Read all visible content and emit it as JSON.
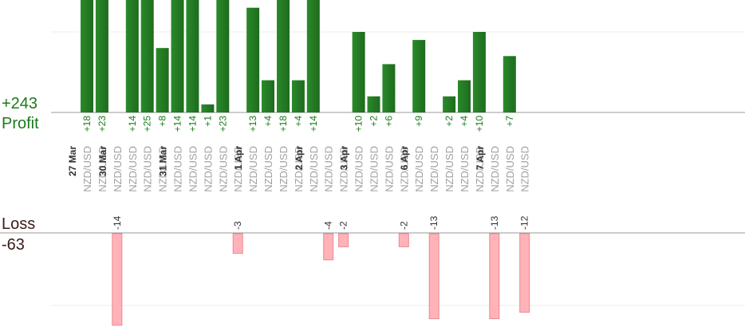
{
  "summary": {
    "profit_total": "+243",
    "profit_label": "Profit",
    "loss_label": "Loss",
    "loss_total": "-63"
  },
  "colors": {
    "profit_bar": "#1e6b1e",
    "profit_text": "#1a7a1a",
    "loss_bar": "#ffb3b8",
    "loss_bar_edge": "#e88a92",
    "loss_text": "#333333"
  },
  "chart_data": {
    "type": "bar",
    "pair": "NZD/USD",
    "trades": [
      {
        "date": "27 Mar",
        "pair": "NZD/USD",
        "value": 18
      },
      {
        "pair": "NZD/USD",
        "value": 23
      },
      {
        "date": "30 Mar",
        "pair": "NZD/USD",
        "value": -14
      },
      {
        "pair": "NZD/USD",
        "value": 14
      },
      {
        "pair": "NZD/USD",
        "value": 25
      },
      {
        "pair": "NZD/USD",
        "value": 8
      },
      {
        "date": "31 Mar",
        "pair": "NZD/USD",
        "value": 14
      },
      {
        "pair": "NZD/USD",
        "value": 14
      },
      {
        "pair": "NZD/USD",
        "value": 1
      },
      {
        "pair": "NZD/USD",
        "value": 23
      },
      {
        "pair": "NZD/USD",
        "value": -3
      },
      {
        "date": "1 Apr",
        "pair": "NZD/USD",
        "value": 13
      },
      {
        "pair": "NZD/USD",
        "value": 4
      },
      {
        "pair": "NZD/USD",
        "value": 18
      },
      {
        "pair": "NZD/USD",
        "value": 4
      },
      {
        "date": "2 Apr",
        "pair": "NZD/USD",
        "value": 14
      },
      {
        "pair": "NZD/USD",
        "value": -4
      },
      {
        "pair": "NZD/USD",
        "value": -2
      },
      {
        "date": "3 Apr",
        "pair": "NZD/USD",
        "value": 10
      },
      {
        "pair": "NZD/USD",
        "value": 2
      },
      {
        "pair": "NZD/USD",
        "value": 6
      },
      {
        "pair": "NZD/USD",
        "value": -2
      },
      {
        "date": "6 Apr",
        "pair": "NZD/USD",
        "value": 9
      },
      {
        "pair": "NZD/USD",
        "value": -13
      },
      {
        "pair": "NZD/USD",
        "value": 2
      },
      {
        "pair": "NZD/USD",
        "value": 4
      },
      {
        "pair": "NZD/USD",
        "value": 10
      },
      {
        "date": "7 Apr",
        "pair": "NZD/USD",
        "value": -13
      },
      {
        "pair": "NZD/USD",
        "value": 7
      },
      {
        "pair": "NZD/USD",
        "value": -12
      }
    ],
    "grid": true
  }
}
